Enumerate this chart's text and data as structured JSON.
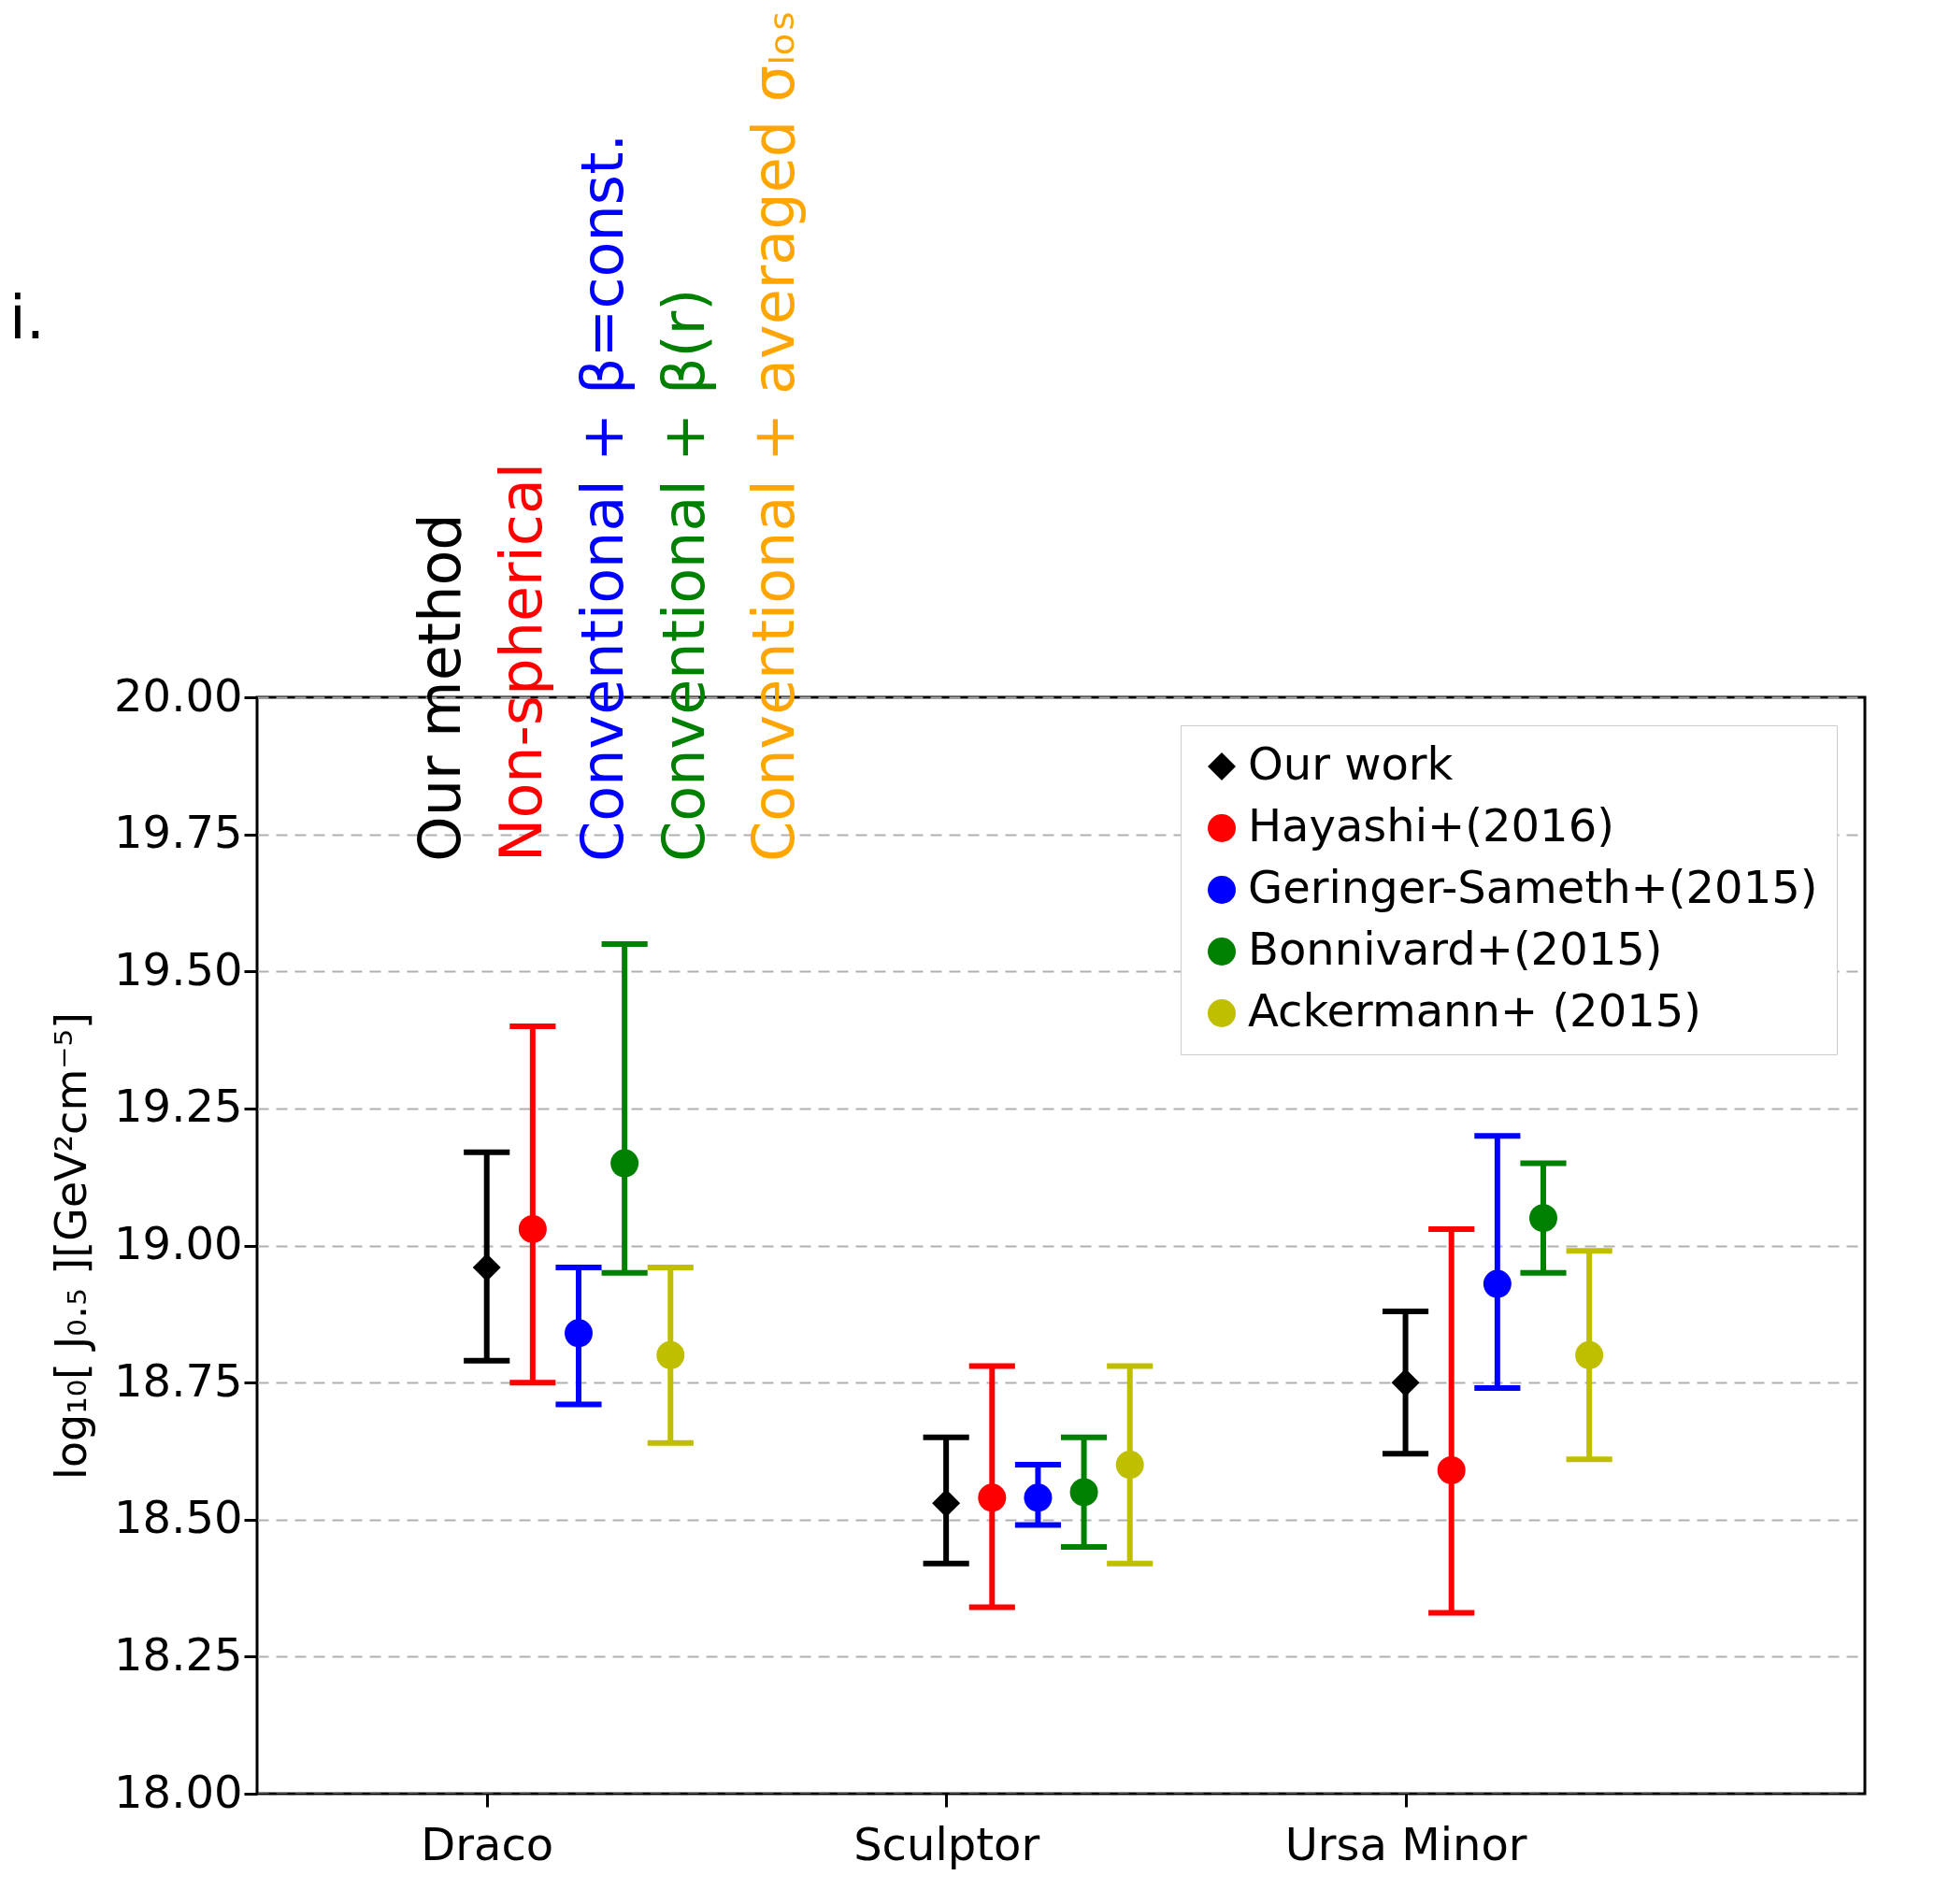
{
  "chart_data": {
    "type": "scatter",
    "ylabel": "log₁₀[ J₀.₅ ][GeV²cm⁻⁵]",
    "categories": [
      "Draco",
      "Sculptor",
      "Ursa Minor"
    ],
    "ylim": [
      18.0,
      20.0
    ],
    "yticks": [
      {
        "value": 18.0,
        "label": "18.00"
      },
      {
        "value": 18.25,
        "label": "18.25"
      },
      {
        "value": 18.5,
        "label": "18.50"
      },
      {
        "value": 18.75,
        "label": "18.75"
      },
      {
        "value": 19.0,
        "label": "19.00"
      },
      {
        "value": 19.25,
        "label": "19.25"
      },
      {
        "value": 19.5,
        "label": "19.50"
      },
      {
        "value": 19.75,
        "label": "19.75"
      },
      {
        "value": 20.0,
        "label": "20.00"
      }
    ],
    "grid": "y",
    "legend": "top right",
    "series": [
      {
        "name": "Our work",
        "color": "#000000",
        "marker": "diamond",
        "values": [
          18.96,
          18.53,
          18.75
        ],
        "errors": [
          [
            18.79,
            19.17
          ],
          [
            18.42,
            18.65
          ],
          [
            18.62,
            18.88
          ]
        ]
      },
      {
        "name": "Hayashi+(2016)",
        "color": "#ff0000",
        "marker": "circle",
        "values": [
          19.03,
          18.54,
          18.59
        ],
        "errors": [
          [
            18.75,
            19.4
          ],
          [
            18.34,
            18.78
          ],
          [
            18.33,
            19.03
          ]
        ]
      },
      {
        "name": "Geringer-Sameth+(2015)",
        "color": "#0000ff",
        "marker": "circle",
        "values": [
          18.84,
          18.54,
          18.93
        ],
        "errors": [
          [
            18.71,
            18.96
          ],
          [
            18.49,
            18.6
          ],
          [
            18.74,
            19.2
          ]
        ]
      },
      {
        "name": "Bonnivard+(2015)",
        "color": "#008000",
        "marker": "circle",
        "values": [
          19.15,
          18.55,
          19.05
        ],
        "errors": [
          [
            18.95,
            19.55
          ],
          [
            18.45,
            18.65
          ],
          [
            18.95,
            19.15
          ]
        ]
      },
      {
        "name": "Ackermann+ (2015)",
        "color": "#bfbf00",
        "marker": "circle",
        "values": [
          18.8,
          18.6,
          18.8
        ],
        "errors": [
          [
            18.64,
            18.96
          ],
          [
            18.42,
            18.78
          ],
          [
            18.61,
            18.99
          ]
        ]
      }
    ],
    "annotations": [
      "i.",
      "Our method",
      "Non-spherical",
      "Conventional + β=const.",
      "Conventional + β(r)",
      "Conventional + averaged σₗₒₛ"
    ]
  }
}
